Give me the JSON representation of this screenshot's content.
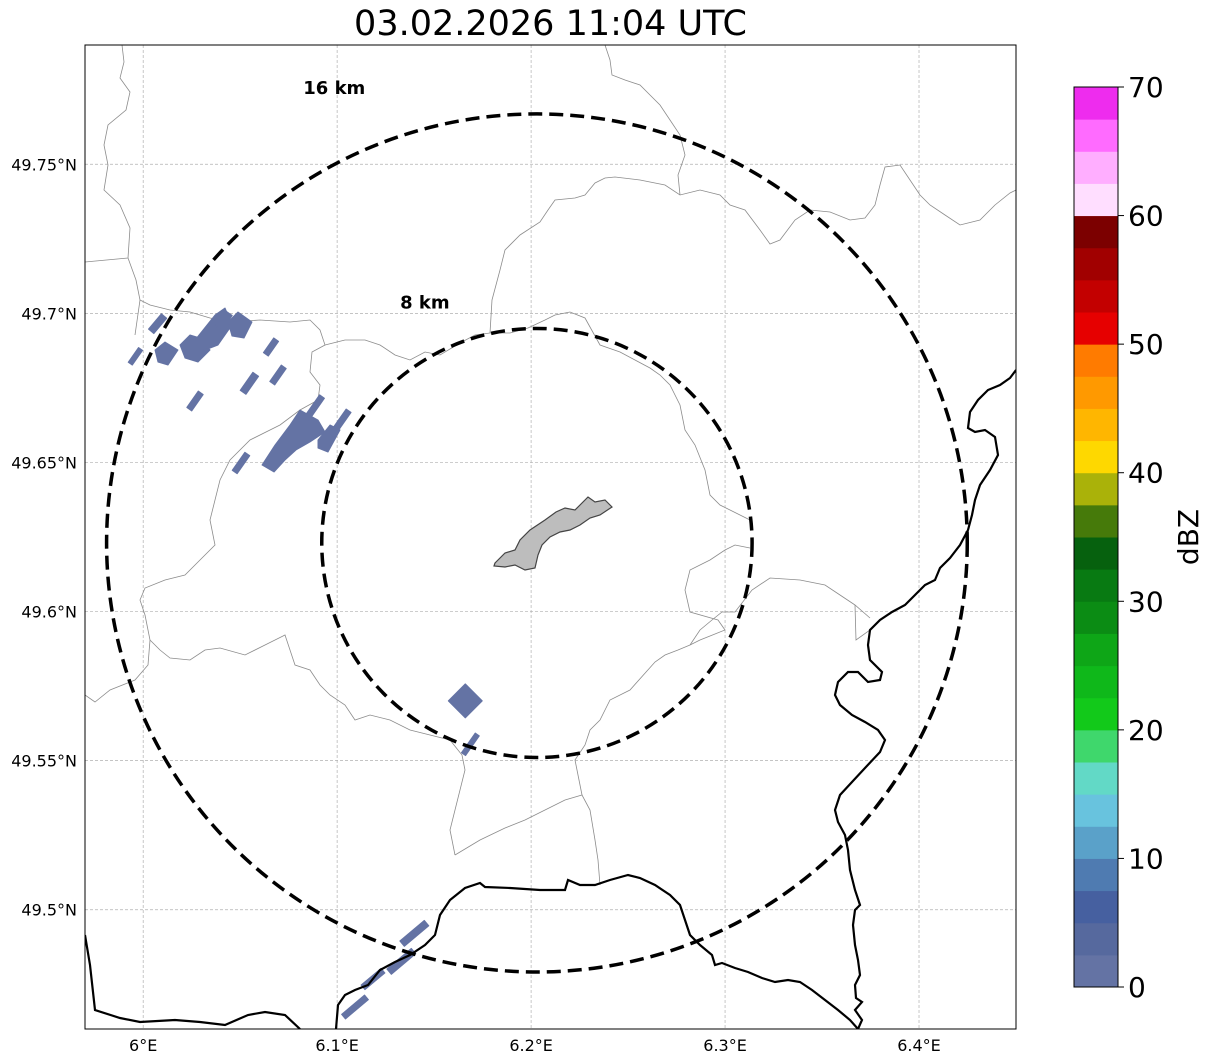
{
  "title": "03.02.2026 11:04 UTC",
  "map": {
    "lon_range": [
      5.97,
      6.45
    ],
    "lat_range": [
      49.46,
      49.79
    ],
    "radar_center": {
      "lon": 6.203,
      "lat": 49.623
    },
    "x_ticks": [
      {
        "value": 6.0,
        "label": "6°E"
      },
      {
        "value": 6.1,
        "label": "6.1°E"
      },
      {
        "value": 6.2,
        "label": "6.2°E"
      },
      {
        "value": 6.3,
        "label": "6.3°E"
      },
      {
        "value": 6.4,
        "label": "6.4°E"
      }
    ],
    "y_ticks": [
      {
        "value": 49.75,
        "label": "49.75°N"
      },
      {
        "value": 49.7,
        "label": "49.7°N"
      },
      {
        "value": 49.65,
        "label": "49.65°N"
      },
      {
        "value": 49.6,
        "label": "49.6°N"
      },
      {
        "value": 49.55,
        "label": "49.55°N"
      },
      {
        "value": 49.5,
        "label": "49.5°N"
      }
    ],
    "rings": [
      {
        "radius_km": 8,
        "label": "8 km"
      },
      {
        "radius_km": 16,
        "label": "16 km"
      }
    ],
    "grid": true
  },
  "colorbar": {
    "title": "dBZ",
    "min": 0,
    "max": 70,
    "tick_labels": [
      "0",
      "10",
      "20",
      "30",
      "40",
      "50",
      "60",
      "70"
    ],
    "colors": [
      "#6473a4",
      "#56699e",
      "#4660a0",
      "#4f7bb1",
      "#5aa1c9",
      "#68c3de",
      "#62d9c6",
      "#3fd76c",
      "#12c91a",
      "#0fb81a",
      "#0ea617",
      "#0b8c14",
      "#087a12",
      "#06610e",
      "#467a0a",
      "#aab209",
      "#fed800",
      "#ffb600",
      "#ff9900",
      "#ff7b00",
      "#e60000",
      "#c30000",
      "#a10000",
      "#7c0000",
      "#ffdeff",
      "#ffaeff",
      "#ff6bff",
      "#ee2cee"
    ]
  },
  "echoes": {
    "level_color": "#6473a4",
    "note_dbz": "0-2.5"
  }
}
